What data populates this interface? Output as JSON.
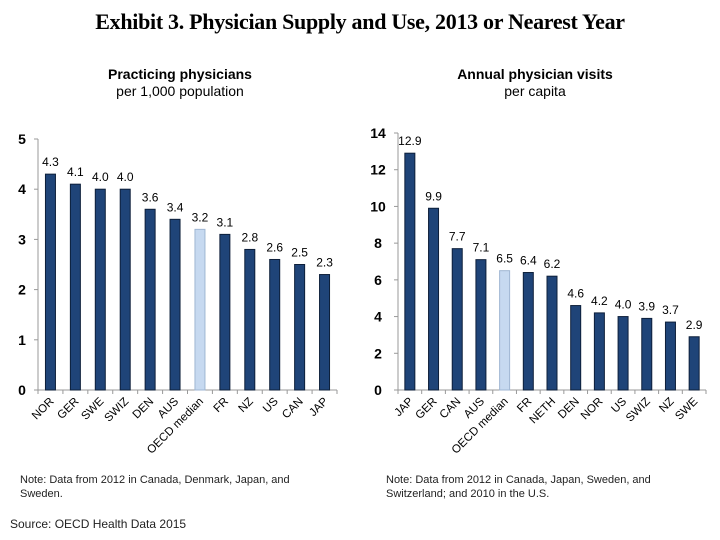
{
  "title": "Exhibit 3. Physician Supply and Use, 2013 or Nearest Year",
  "source": "Source: OECD Health Data 2015",
  "colors": {
    "bar": "#1f4478",
    "median_bar": "#c6d9f0",
    "bar_outline": "#0d1f3a",
    "axis": "#999999"
  },
  "chart_data": [
    {
      "type": "bar",
      "title": "Practicing physicians",
      "subtitle": "per 1,000 population",
      "xlabel": "",
      "ylabel": "",
      "ylim": [
        0,
        5
      ],
      "yticks": [
        0,
        1,
        2,
        3,
        4,
        5
      ],
      "grid": false,
      "categories": [
        "NOR",
        "GER",
        "SWE",
        "SWIZ",
        "DEN",
        "AUS",
        "OECD median",
        "FR",
        "NZ",
        "US",
        "CAN",
        "JAP"
      ],
      "values": [
        4.3,
        4.1,
        4.0,
        4.0,
        3.6,
        3.4,
        3.2,
        3.1,
        2.8,
        2.6,
        2.5,
        2.3
      ],
      "value_labels": [
        "4.3",
        "4.1",
        "4.0",
        "4.0",
        "3.6",
        "3.4",
        "3.2",
        "3.1",
        "2.8",
        "2.6",
        "2.5",
        "2.3"
      ],
      "highlight": "OECD median",
      "note": "Note: Data from 2012 in Canada, Denmark, Japan, and Sweden."
    },
    {
      "type": "bar",
      "title": "Annual physician visits",
      "subtitle": "per capita",
      "xlabel": "",
      "ylabel": "",
      "ylim": [
        0,
        14
      ],
      "yticks": [
        0,
        2,
        4,
        6,
        8,
        10,
        12,
        14
      ],
      "grid": false,
      "categories": [
        "JAP",
        "GER",
        "CAN",
        "AUS",
        "OECD median",
        "FR",
        "NETH",
        "DEN",
        "NOR",
        "US",
        "SWIZ",
        "NZ",
        "SWE"
      ],
      "values": [
        12.9,
        9.9,
        7.7,
        7.1,
        6.5,
        6.4,
        6.2,
        4.6,
        4.2,
        4.0,
        3.9,
        3.7,
        2.9
      ],
      "value_labels": [
        "12.9",
        "9.9",
        "7.7",
        "7.1",
        "6.5",
        "6.4",
        "6.2",
        "4.6",
        "4.2",
        "4.0",
        "3.9",
        "3.7",
        "2.9"
      ],
      "highlight": "OECD median",
      "note": "Note: Data from 2012 in Canada, Japan, Sweden, and Switzerland; and 2010 in the U.S."
    }
  ]
}
